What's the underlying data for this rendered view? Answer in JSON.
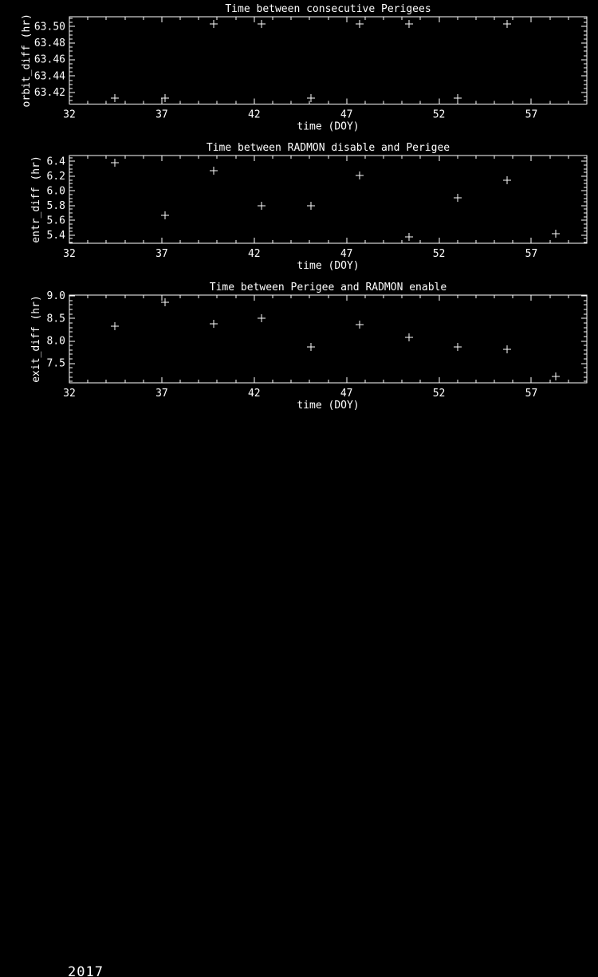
{
  "page": {
    "background": "#000000",
    "foreground": "#ffffff",
    "footer_year": "2017"
  },
  "chart_data": [
    {
      "type": "scatter",
      "title": "Time between consecutive Perigees",
      "xlabel": "time (DOY)",
      "ylabel": "orbit_diff (hr)",
      "xlim": [
        32,
        60
      ],
      "ylim": [
        63.406,
        63.512
      ],
      "xticks": [
        32,
        37,
        42,
        47,
        52,
        57
      ],
      "xtick_labels": [
        "32",
        "37",
        "42",
        "47",
        "52",
        "57"
      ],
      "yticks": [
        63.42,
        63.44,
        63.46,
        63.48,
        63.5
      ],
      "ytick_labels": [
        "63.42",
        "63.44",
        "63.46",
        "63.48",
        "63.50"
      ],
      "x_minor_step": 1,
      "y_minor_step": 0.005,
      "grid": false,
      "legend": null,
      "marker": "plus",
      "points": {
        "x": [
          34.47,
          37.16,
          39.79,
          42.41,
          45.07,
          47.72,
          50.36,
          53.02,
          55.68
        ],
        "y": [
          63.4136,
          63.4136,
          63.5032,
          63.5032,
          63.4136,
          63.5032,
          63.5032,
          63.4136,
          63.5032
        ]
      }
    },
    {
      "type": "scatter",
      "title": "Time between RADMON disable and Perigee",
      "xlabel": "time (DOY)",
      "ylabel": "entr_diff (hr)",
      "xlim": [
        32,
        60
      ],
      "ylim": [
        5.29,
        6.48
      ],
      "xticks": [
        32,
        37,
        42,
        47,
        52,
        57
      ],
      "xtick_labels": [
        "32",
        "37",
        "42",
        "47",
        "52",
        "57"
      ],
      "yticks": [
        5.4,
        5.6,
        5.8,
        6.0,
        6.2,
        6.4
      ],
      "ytick_labels": [
        "5.4",
        "5.6",
        "5.8",
        "6.0",
        "6.2",
        "6.4"
      ],
      "x_minor_step": 1,
      "y_minor_step": 0.05,
      "grid": false,
      "legend": null,
      "marker": "plus",
      "points": {
        "x": [
          34.47,
          37.16,
          39.79,
          42.41,
          45.07,
          47.72,
          50.36,
          53.02,
          55.68,
          58.3
        ],
        "y": [
          6.38,
          5.67,
          6.27,
          5.8,
          5.8,
          6.21,
          5.38,
          5.91,
          6.14,
          5.42
        ]
      }
    },
    {
      "type": "scatter",
      "title": "Time between Perigee and RADMON enable",
      "xlabel": "time (DOY)",
      "ylabel": "exit_diff (hr)",
      "xlim": [
        32,
        60
      ],
      "ylim": [
        7.07,
        9.02
      ],
      "xticks": [
        32,
        37,
        42,
        47,
        52,
        57
      ],
      "xtick_labels": [
        "32",
        "37",
        "42",
        "47",
        "52",
        "57"
      ],
      "yticks": [
        7.5,
        8.0,
        8.5,
        9.0
      ],
      "ytick_labels": [
        "7.5",
        "8.0",
        "8.5",
        "9.0"
      ],
      "x_minor_step": 1,
      "y_minor_step": 0.1,
      "grid": false,
      "legend": null,
      "marker": "plus",
      "points": {
        "x": [
          34.47,
          37.16,
          39.79,
          42.41,
          45.07,
          47.72,
          50.36,
          53.02,
          55.68,
          58.3
        ],
        "y": [
          8.33,
          8.86,
          8.39,
          8.51,
          7.87,
          8.37,
          8.08,
          7.87,
          7.81,
          7.21
        ]
      }
    }
  ]
}
